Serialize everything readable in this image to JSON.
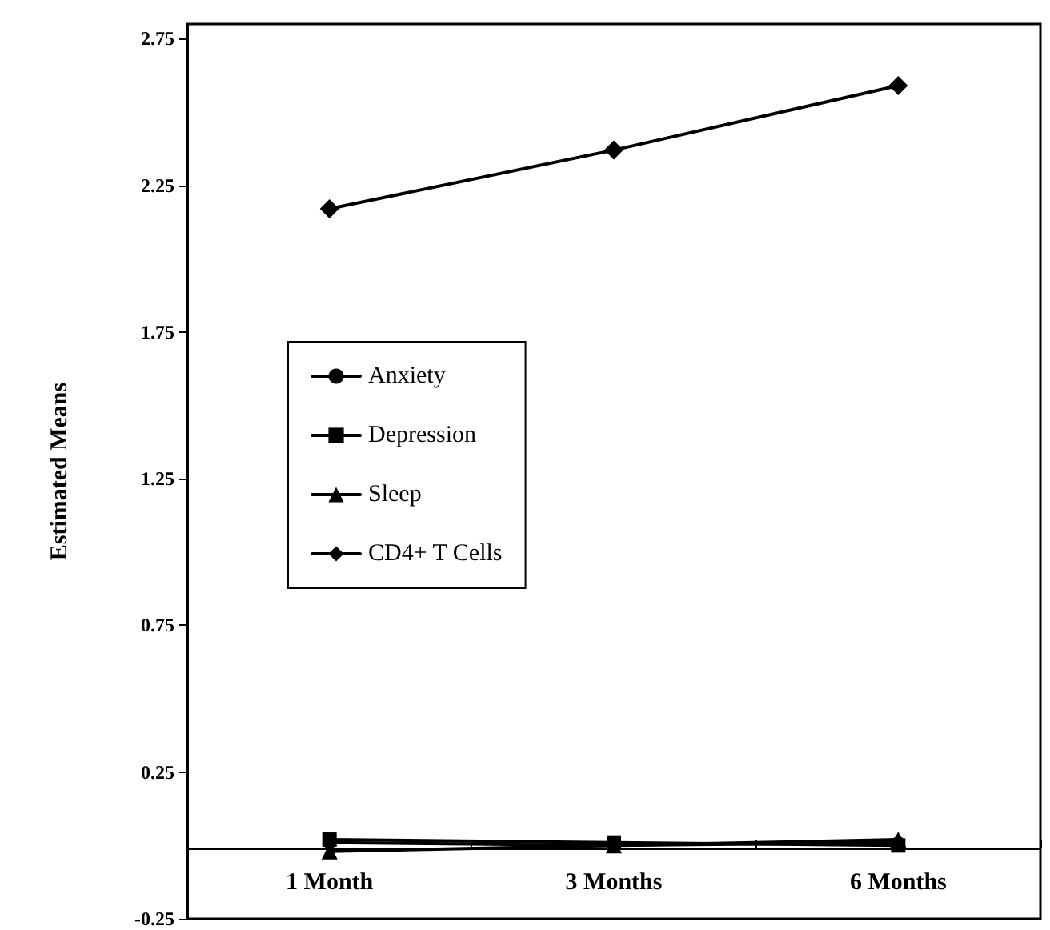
{
  "chart_data": {
    "type": "line",
    "ylabel": "Estimated Means",
    "categories": [
      "1 Month",
      "3 Months",
      "6 Months"
    ],
    "series": [
      {
        "name": "Anxiety",
        "color": "#000000",
        "marker": "circle",
        "values": [
          0.01,
          0.0,
          0.01
        ]
      },
      {
        "name": "Depression",
        "color": "#000000",
        "marker": "square",
        "values": [
          0.02,
          0.01,
          0.0
        ]
      },
      {
        "name": "Sleep",
        "color": "#000000",
        "marker": "triangle",
        "values": [
          -0.02,
          0.0,
          0.02
        ]
      },
      {
        "name": "CD4+ T Cells",
        "color": "#000000",
        "marker": "diamond",
        "values": [
          2.17,
          2.37,
          2.59
        ]
      }
    ],
    "ylim": [
      -0.25,
      2.8
    ],
    "yticks": [
      -0.25,
      0.25,
      0.75,
      1.25,
      1.75,
      2.25,
      2.75
    ],
    "grid": false,
    "legend": "left",
    "line_style": "solid"
  }
}
